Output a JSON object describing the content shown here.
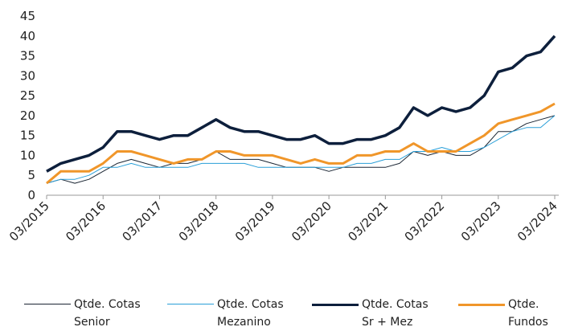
{
  "chart_data": {
    "type": "line",
    "categories": [
      "03/2015",
      null,
      null,
      null,
      "03/2016",
      null,
      null,
      null,
      "03/2017",
      null,
      null,
      null,
      "03/2018",
      null,
      null,
      null,
      "03/2019",
      null,
      null,
      null,
      "03/2020",
      null,
      null,
      null,
      "03/2021",
      null,
      null,
      null,
      "03/2022",
      null,
      null,
      null,
      "03/2023",
      null,
      null,
      null,
      "03/2024"
    ],
    "ylim": [
      0,
      45
    ],
    "yticks": [
      0,
      5,
      10,
      15,
      20,
      25,
      30,
      35,
      40,
      45
    ],
    "grid": false,
    "legend": "bottom",
    "series": [
      {
        "name": "Qtde. Cotas Senior",
        "color": "#1a2533",
        "line_width": 1,
        "values": [
          3,
          4,
          3,
          4,
          6,
          8,
          9,
          8,
          7,
          8,
          8,
          9,
          11,
          9,
          9,
          9,
          8,
          7,
          7,
          7,
          6,
          7,
          7,
          7,
          7,
          8,
          11,
          10,
          11,
          10,
          10,
          12,
          16,
          16,
          18,
          19,
          20
        ]
      },
      {
        "name": "Qtde. Cotas Mezanino",
        "color": "#2a9fd8",
        "line_width": 1,
        "values": [
          3,
          4,
          4,
          5,
          7,
          7,
          8,
          7,
          7,
          7,
          7,
          8,
          8,
          8,
          8,
          7,
          7,
          7,
          7,
          7,
          7,
          7,
          8,
          8,
          9,
          9,
          11,
          11,
          12,
          11,
          11,
          12,
          14,
          16,
          17,
          17,
          20
        ]
      },
      {
        "name": "Qtde. Cotas Sr + Mez",
        "color": "#0d1f3c",
        "line_width": 3.5,
        "values": [
          6,
          8,
          9,
          10,
          12,
          16,
          16,
          15,
          14,
          15,
          15,
          17,
          19,
          17,
          16,
          16,
          15,
          14,
          14,
          15,
          13,
          13,
          14,
          14,
          15,
          17,
          22,
          20,
          22,
          21,
          22,
          25,
          31,
          32,
          35,
          36,
          40
        ]
      },
      {
        "name": "Qtde. Fundos",
        "color": "#f0962a",
        "line_width": 3,
        "values": [
          3,
          6,
          6,
          6,
          8,
          11,
          11,
          10,
          9,
          8,
          9,
          9,
          11,
          11,
          10,
          10,
          10,
          9,
          8,
          9,
          8,
          8,
          10,
          10,
          11,
          11,
          13,
          11,
          11,
          11,
          13,
          15,
          18,
          19,
          20,
          21,
          23
        ]
      }
    ]
  }
}
